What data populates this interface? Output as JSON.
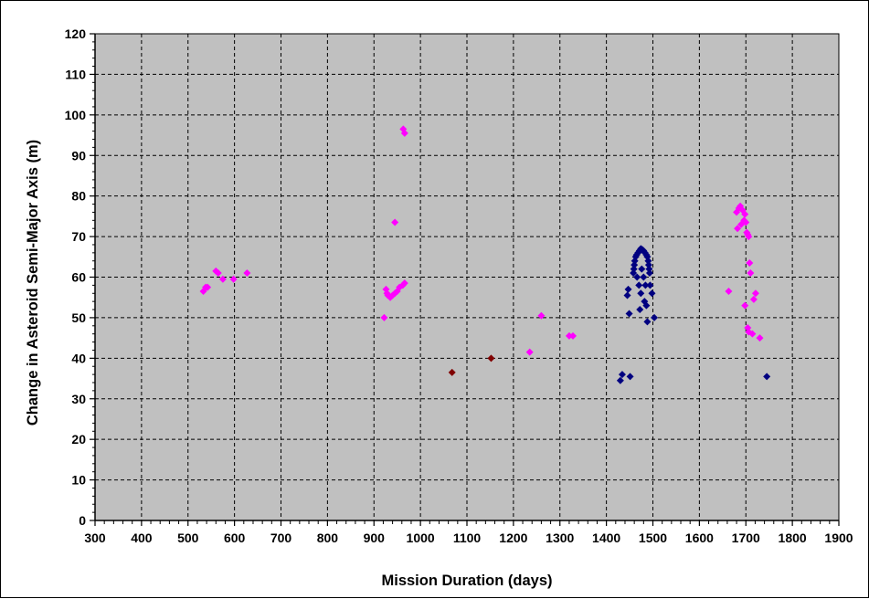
{
  "chart_data": {
    "type": "scatter",
    "title": "",
    "xlabel": "Mission Duration (days)",
    "ylabel": "Change in Asteroid Semi-Major Axis (m)",
    "xlim": [
      300,
      1900
    ],
    "ylim": [
      0,
      120
    ],
    "x_ticks": [
      300,
      400,
      500,
      600,
      700,
      800,
      900,
      1000,
      1100,
      1200,
      1300,
      1400,
      1500,
      1600,
      1700,
      1800,
      1900
    ],
    "y_ticks": [
      0,
      10,
      20,
      30,
      40,
      50,
      60,
      70,
      80,
      90,
      100,
      110,
      120
    ],
    "grid": true,
    "legend": "none",
    "plot_background": "#c0c0c0",
    "series": [
      {
        "color": "#ff00ff",
        "marker": "diamond",
        "points": [
          [
            533,
            56.5
          ],
          [
            538,
            57.5
          ],
          [
            542,
            57.5
          ],
          [
            560,
            61.5
          ],
          [
            565,
            61
          ],
          [
            575,
            59.5
          ],
          [
            598,
            59.5
          ],
          [
            627,
            61
          ],
          [
            922,
            50
          ],
          [
            926,
            57
          ],
          [
            928,
            56
          ],
          [
            930,
            55.5
          ],
          [
            935,
            55
          ],
          [
            940,
            55.5
          ],
          [
            945,
            56
          ],
          [
            950,
            56.5
          ],
          [
            955,
            57.5
          ],
          [
            962,
            58
          ],
          [
            966,
            58.5
          ],
          [
            945,
            73.5
          ],
          [
            963,
            96.5
          ],
          [
            966,
            95.5
          ],
          [
            1235,
            41.5
          ],
          [
            1260,
            50.5
          ],
          [
            1320,
            45.5
          ],
          [
            1328,
            45.5
          ],
          [
            1663,
            56.5
          ],
          [
            1680,
            76
          ],
          [
            1682,
            72
          ],
          [
            1685,
            77
          ],
          [
            1688,
            77.5
          ],
          [
            1690,
            73
          ],
          [
            1693,
            76.5
          ],
          [
            1696,
            74
          ],
          [
            1698,
            75.5
          ],
          [
            1700,
            73.5
          ],
          [
            1702,
            71
          ],
          [
            1704,
            70.5
          ],
          [
            1706,
            70
          ],
          [
            1698,
            53
          ],
          [
            1704,
            47.5
          ],
          [
            1706,
            46.5
          ],
          [
            1708,
            63.5
          ],
          [
            1710,
            61
          ],
          [
            1714,
            46
          ],
          [
            1717,
            54.5
          ],
          [
            1721,
            56
          ],
          [
            1730,
            45
          ]
        ]
      },
      {
        "color": "#800000",
        "marker": "diamond",
        "points": [
          [
            1068,
            36.5
          ],
          [
            1152,
            40
          ]
        ]
      },
      {
        "color": "#000080",
        "marker": "diamond",
        "points": [
          [
            1430,
            34.5
          ],
          [
            1434,
            36
          ],
          [
            1445,
            55.5
          ],
          [
            1447,
            57
          ],
          [
            1449,
            51
          ],
          [
            1451,
            35.5
          ],
          [
            1458,
            61
          ],
          [
            1459,
            62
          ],
          [
            1460,
            63
          ],
          [
            1461,
            64
          ],
          [
            1463,
            65
          ],
          [
            1465,
            65.5
          ],
          [
            1468,
            66
          ],
          [
            1471,
            66.5
          ],
          [
            1474,
            67
          ],
          [
            1477,
            66.8
          ],
          [
            1480,
            66.5
          ],
          [
            1483,
            66
          ],
          [
            1486,
            65.5
          ],
          [
            1488,
            65
          ],
          [
            1490,
            64
          ],
          [
            1491,
            63
          ],
          [
            1492,
            62
          ],
          [
            1493,
            61
          ],
          [
            1466,
            60
          ],
          [
            1470,
            58
          ],
          [
            1474,
            56
          ],
          [
            1476,
            62
          ],
          [
            1480,
            60
          ],
          [
            1484,
            58
          ],
          [
            1472,
            52
          ],
          [
            1482,
            54
          ],
          [
            1486,
            53
          ],
          [
            1488,
            49
          ],
          [
            1494,
            58
          ],
          [
            1498,
            56
          ],
          [
            1503,
            50
          ],
          [
            1745,
            35.5
          ]
        ]
      }
    ]
  }
}
